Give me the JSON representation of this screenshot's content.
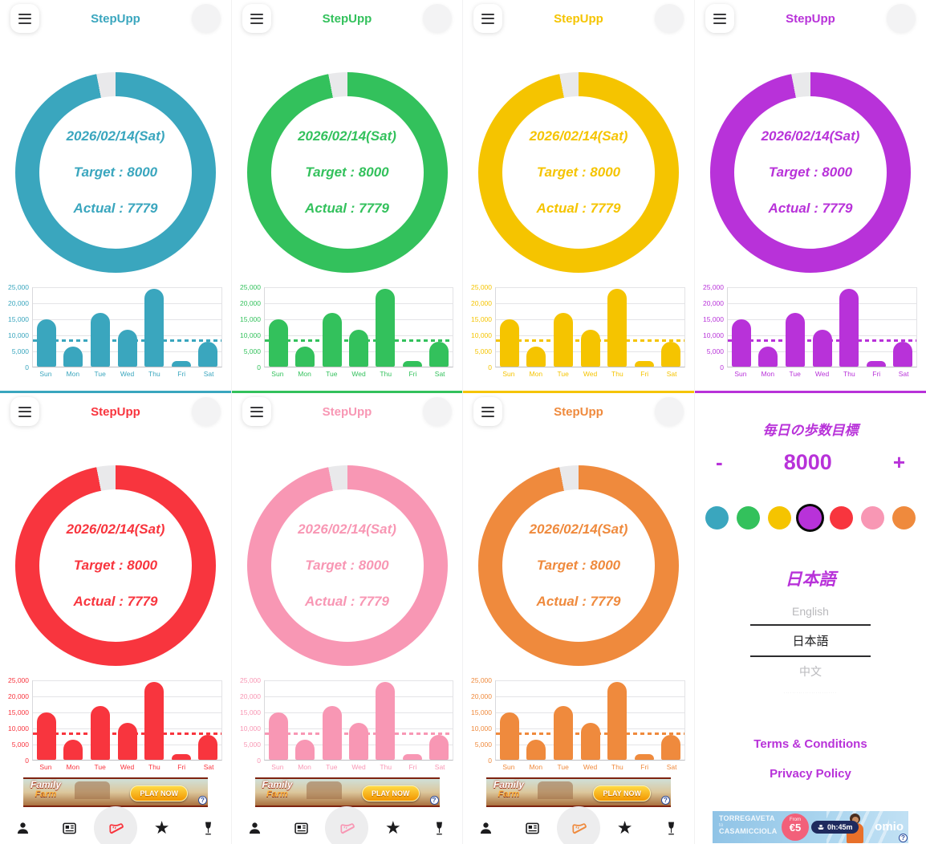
{
  "app": {
    "title": "StepUpp"
  },
  "donut": {
    "date": "2026/02/14(Sat)",
    "target": "Target : 8000",
    "actual": "Actual : 7779"
  },
  "themes": [
    {
      "name": "teal",
      "color": "#3AA6BE"
    },
    {
      "name": "green",
      "color": "#33C15C"
    },
    {
      "name": "yellow",
      "color": "#F5C400"
    },
    {
      "name": "magenta",
      "color": "#B832D9"
    },
    {
      "name": "red",
      "color": "#F8353E"
    },
    {
      "name": "pink",
      "color": "#F897B4"
    },
    {
      "name": "orange",
      "color": "#EF8A3D"
    }
  ],
  "selected_theme_index": 3,
  "chart_data": {
    "type": "bar",
    "categories": [
      "Sun",
      "Mon",
      "Tue",
      "Wed",
      "Thu",
      "Fri",
      "Sat"
    ],
    "values": [
      14800,
      6300,
      17000,
      11500,
      24400,
      1700,
      7779
    ],
    "target_line": 8000,
    "y_ticks": [
      "25,000",
      "20,000",
      "15,000",
      "10,000",
      "5,000",
      "0"
    ],
    "ylim": [
      0,
      25000
    ],
    "grid": true,
    "legend": "none",
    "title": ""
  },
  "settings": {
    "goal_heading": "毎日の歩数目標",
    "minus": "-",
    "value": "8000",
    "plus": "+",
    "language_heading": "日本語",
    "languages": [
      "English",
      "日本語",
      "中文"
    ],
    "languages_hint": "·························",
    "terms": "Terms & Conditions",
    "privacy": "Privacy Policy"
  },
  "tabbar": {
    "icons": [
      "profile",
      "news",
      "steps",
      "favorites",
      "drinks"
    ],
    "active": "steps",
    "star_glyph": "★"
  },
  "ads": {
    "family_farm": {
      "title_line1": "Family",
      "title_line2": "Farm",
      "title_line3": "Adventure",
      "cta": "PLAY NOW",
      "info": "?"
    },
    "omio": {
      "from_city": "TORREGAVETA",
      "to_word": "to",
      "to_city": "CASAMICCIOLA",
      "from_label": "From",
      "price": "€5",
      "duration": "0h:45m",
      "brand": "omio",
      "info": "?"
    }
  }
}
